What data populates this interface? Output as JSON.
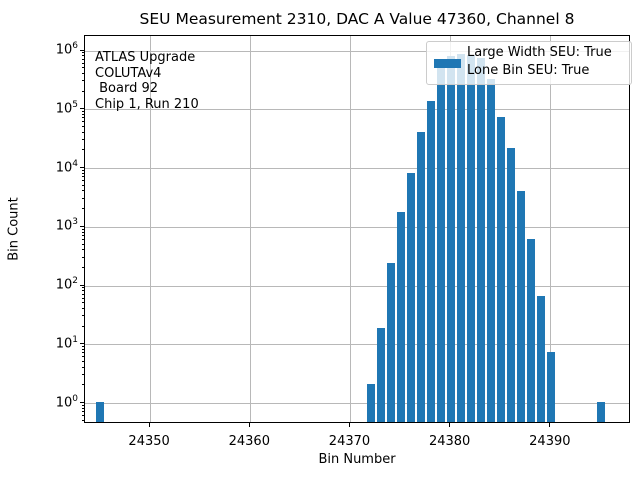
{
  "figure": {
    "title": "SEU Measurement 2310, DAC A Value 47360, Channel 8"
  },
  "chart_data": {
    "type": "bar",
    "title": "SEU Measurement 2310, DAC A Value 47360, Channel 8",
    "xlabel": "Bin Number",
    "ylabel": "Bin Count",
    "yscale": "log",
    "xlim": [
      24343.5,
      24398.0
    ],
    "ylim": [
      0.45,
      1800000
    ],
    "x_ticks": [
      24350,
      24360,
      24370,
      24380,
      24390
    ],
    "y_tick_exponents": [
      0,
      1,
      2,
      3,
      4,
      5,
      6
    ],
    "grid": true,
    "bar_width_bins": 0.8,
    "bins": [
      24345,
      24372,
      24373,
      24374,
      24375,
      24376,
      24377,
      24378,
      24379,
      24380,
      24381,
      24382,
      24383,
      24384,
      24385,
      24386,
      24387,
      24388,
      24389,
      24390,
      24395
    ],
    "counts": [
      1,
      2,
      18,
      230,
      1700,
      7900,
      39000,
      130000,
      660000,
      770000,
      830000,
      800000,
      690000,
      310000,
      70000,
      21000,
      3800,
      580,
      62,
      7,
      1
    ],
    "legend_entries": [
      "Large Width SEU: True",
      "Lone Bin SEU: True"
    ],
    "legend_position": "upper right",
    "annotation_lines": [
      "ATLAS Upgrade",
      "COLUTAv4",
      " Board 92",
      "Chip 1, Run 210"
    ],
    "colors": {
      "bar": "#1f77b4",
      "grid": "#b8b8b8",
      "spine": "#000000",
      "legend_border": "#cccccc"
    }
  }
}
